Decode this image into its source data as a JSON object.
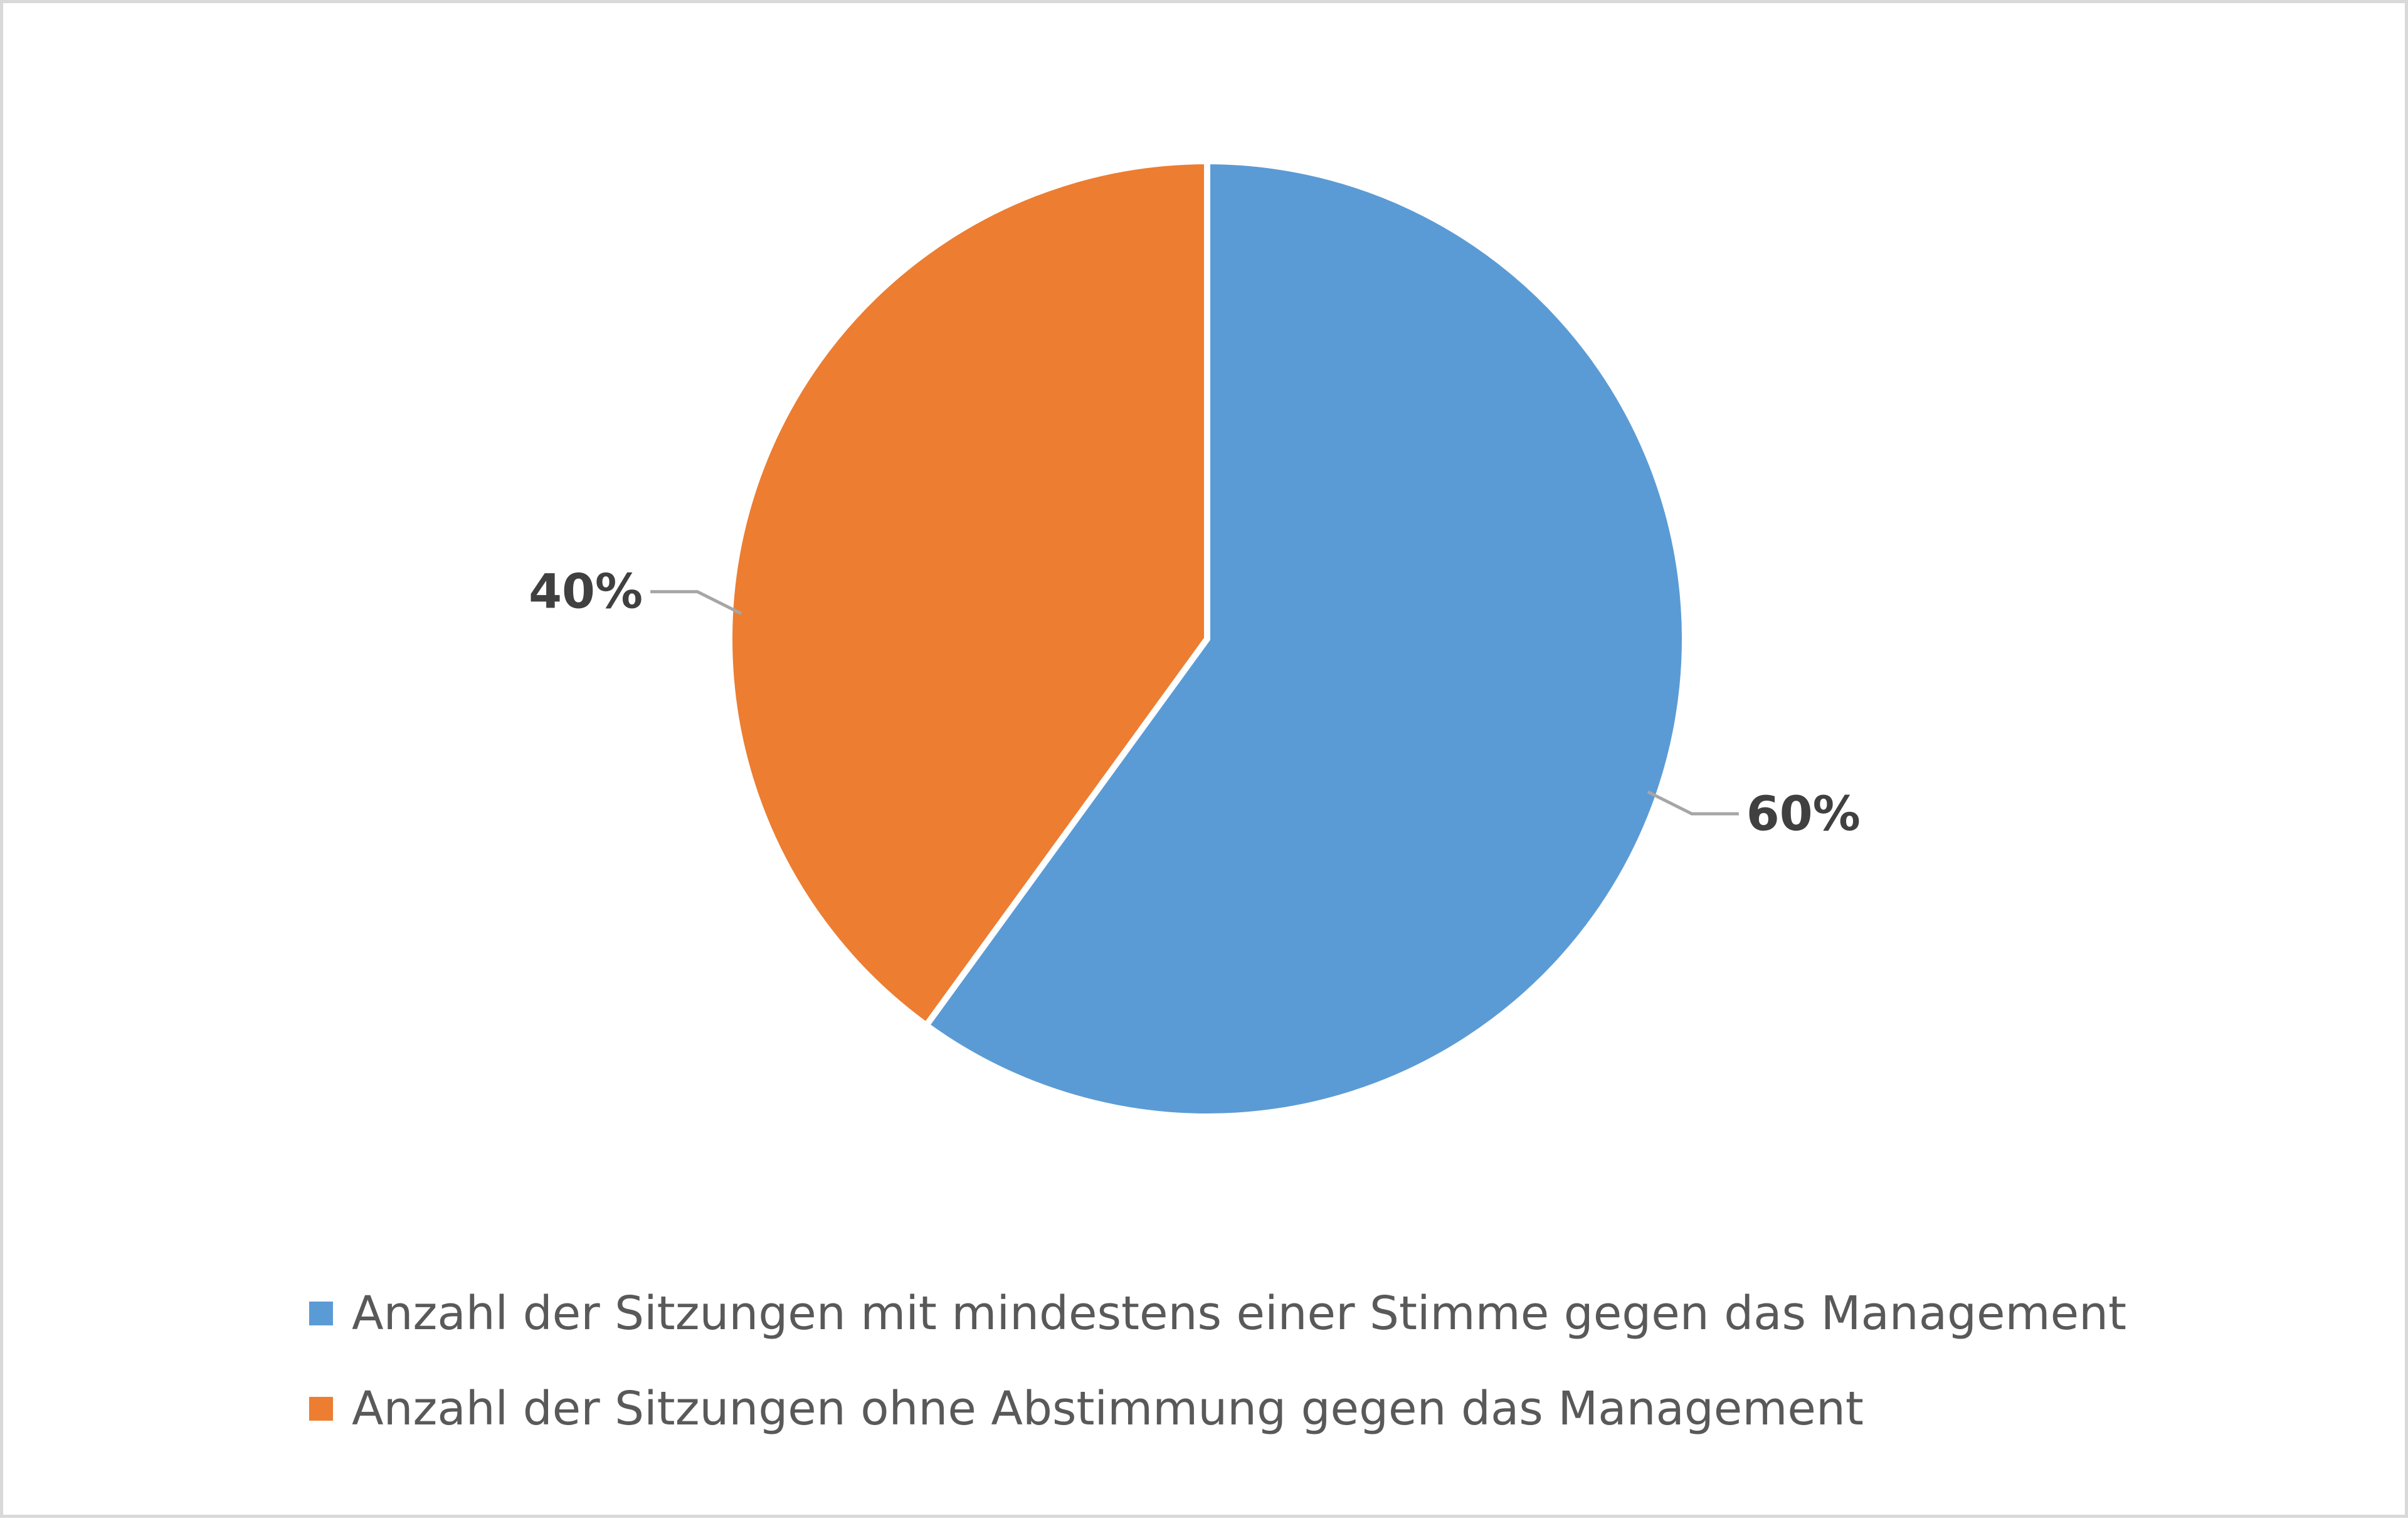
{
  "chart_data": {
    "type": "pie",
    "title": "",
    "slices": [
      {
        "label": "Anzahl der Sitzungen mit mindestens einer Stimme gegen das Management",
        "value": 60,
        "display": "60%",
        "color": "#5B9BD5"
      },
      {
        "label": "Anzahl der Sitzungen ohne Abstimmung gegen das Management",
        "value": 40,
        "display": "40%",
        "color": "#ED7D31"
      }
    ],
    "start_angle": "12 o'clock",
    "direction": "clockwise",
    "data_labels": "outside-with-leader-lines",
    "legend_position": "bottom",
    "frame_color": "#D9D9D9"
  }
}
